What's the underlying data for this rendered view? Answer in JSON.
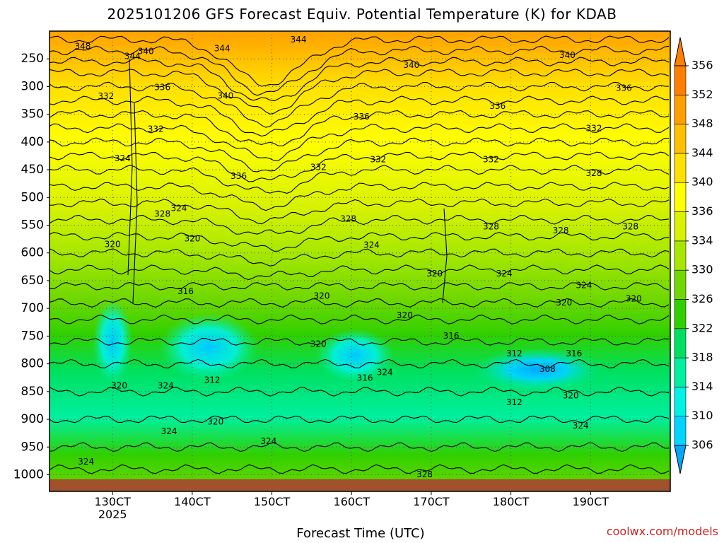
{
  "chart_data": {
    "type": "heatmap",
    "title": "2025101206 GFS Forecast Equiv. Potential Temperature (K) for KDAB",
    "xlabel": "Forecast Time (UTC)",
    "ylabel": "",
    "x_unit": "hour of month (day*24)",
    "x_range": [
      291,
      478
    ],
    "x_ticks": [
      {
        "value": 310,
        "label": "130CT",
        "sublabel": "2025"
      },
      {
        "value": 334,
        "label": "140CT",
        "sublabel": ""
      },
      {
        "value": 358,
        "label": "150CT",
        "sublabel": ""
      },
      {
        "value": 382,
        "label": "160CT",
        "sublabel": ""
      },
      {
        "value": 406,
        "label": "170CT",
        "sublabel": ""
      },
      {
        "value": 430,
        "label": "180CT",
        "sublabel": ""
      },
      {
        "value": 454,
        "label": "190CT",
        "sublabel": ""
      }
    ],
    "y_unit": "hPa",
    "y_range": [
      1030,
      200
    ],
    "y_ticks": [
      250,
      300,
      350,
      400,
      450,
      500,
      550,
      600,
      650,
      700,
      750,
      800,
      850,
      900,
      950,
      1000
    ],
    "grid": true,
    "colorbar": {
      "levels": [
        306,
        310,
        314,
        318,
        322,
        326,
        330,
        334,
        336,
        340,
        344,
        348,
        352,
        356
      ],
      "colors": [
        "#00a8ff",
        "#00d4ff",
        "#00f2e6",
        "#00f0a0",
        "#00e060",
        "#30d000",
        "#70d800",
        "#a8e800",
        "#d8f200",
        "#ffff00",
        "#ffe000",
        "#ffc000",
        "#ffa000",
        "#ff8000"
      ]
    },
    "contour_labels": [
      {
        "x": 301,
        "p": 228,
        "label": "348"
      },
      {
        "x": 316,
        "p": 246,
        "label": "344"
      },
      {
        "x": 320,
        "p": 237,
        "label": "340"
      },
      {
        "x": 343,
        "p": 232,
        "label": "344"
      },
      {
        "x": 366,
        "p": 216,
        "label": "344"
      },
      {
        "x": 400,
        "p": 262,
        "label": "340"
      },
      {
        "x": 447,
        "p": 244,
        "label": "340"
      },
      {
        "x": 325,
        "p": 302,
        "label": "336"
      },
      {
        "x": 308,
        "p": 318,
        "label": "332"
      },
      {
        "x": 344,
        "p": 317,
        "label": "340"
      },
      {
        "x": 385,
        "p": 355,
        "label": "336"
      },
      {
        "x": 426,
        "p": 336,
        "label": "336"
      },
      {
        "x": 464,
        "p": 303,
        "label": "336"
      },
      {
        "x": 323,
        "p": 377,
        "label": "332"
      },
      {
        "x": 313,
        "p": 430,
        "label": "324"
      },
      {
        "x": 348,
        "p": 462,
        "label": "336"
      },
      {
        "x": 372,
        "p": 446,
        "label": "332"
      },
      {
        "x": 390,
        "p": 432,
        "label": "332"
      },
      {
        "x": 424,
        "p": 432,
        "label": "332"
      },
      {
        "x": 455,
        "p": 376,
        "label": "332"
      },
      {
        "x": 455,
        "p": 457,
        "label": "328"
      },
      {
        "x": 325,
        "p": 530,
        "label": "328"
      },
      {
        "x": 330,
        "p": 520,
        "label": "324"
      },
      {
        "x": 381,
        "p": 539,
        "label": "328"
      },
      {
        "x": 424,
        "p": 553,
        "label": "328"
      },
      {
        "x": 445,
        "p": 560,
        "label": "328"
      },
      {
        "x": 466,
        "p": 553,
        "label": "328"
      },
      {
        "x": 310,
        "p": 585,
        "label": "320"
      },
      {
        "x": 334,
        "p": 575,
        "label": "320"
      },
      {
        "x": 388,
        "p": 586,
        "label": "324"
      },
      {
        "x": 332,
        "p": 670,
        "label": "316"
      },
      {
        "x": 373,
        "p": 678,
        "label": "320"
      },
      {
        "x": 407,
        "p": 638,
        "label": "320"
      },
      {
        "x": 428,
        "p": 638,
        "label": "324"
      },
      {
        "x": 452,
        "p": 659,
        "label": "324"
      },
      {
        "x": 446,
        "p": 690,
        "label": "320"
      },
      {
        "x": 467,
        "p": 683,
        "label": "320"
      },
      {
        "x": 398,
        "p": 713,
        "label": "320"
      },
      {
        "x": 372,
        "p": 765,
        "label": "320"
      },
      {
        "x": 412,
        "p": 750,
        "label": "316"
      },
      {
        "x": 431,
        "p": 782,
        "label": "312"
      },
      {
        "x": 449,
        "p": 782,
        "label": "316"
      },
      {
        "x": 441,
        "p": 810,
        "label": "308"
      },
      {
        "x": 312,
        "p": 840,
        "label": "320"
      },
      {
        "x": 326,
        "p": 840,
        "label": "324"
      },
      {
        "x": 340,
        "p": 830,
        "label": "312"
      },
      {
        "x": 386,
        "p": 826,
        "label": "316"
      },
      {
        "x": 392,
        "p": 816,
        "label": "324"
      },
      {
        "x": 448,
        "p": 858,
        "label": "320"
      },
      {
        "x": 431,
        "p": 870,
        "label": "312"
      },
      {
        "x": 341,
        "p": 905,
        "label": "320"
      },
      {
        "x": 327,
        "p": 922,
        "label": "324"
      },
      {
        "x": 357,
        "p": 940,
        "label": "324"
      },
      {
        "x": 451,
        "p": 912,
        "label": "324"
      },
      {
        "x": 302,
        "p": 977,
        "label": "324"
      },
      {
        "x": 404,
        "p": 1000,
        "label": "328"
      }
    ]
  },
  "credit": "coolwx.com/models"
}
